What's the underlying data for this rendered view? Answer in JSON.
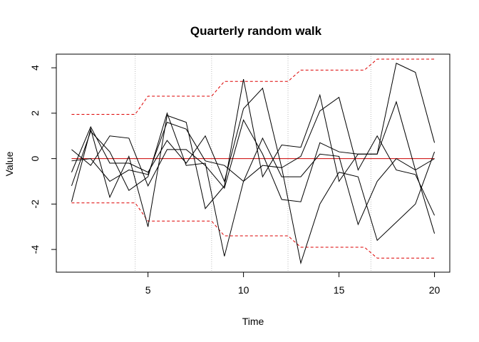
{
  "chart_data": {
    "type": "line",
    "title": "Quarterly random walk",
    "xlabel": "Time",
    "ylabel": "Value",
    "xlim": [
      0.2,
      20.8
    ],
    "ylim": [
      -5,
      4.6
    ],
    "x_ticks": [
      5,
      10,
      15,
      20
    ],
    "y_ticks": [
      -4,
      -2,
      0,
      2,
      4
    ],
    "x_tick_labels": [
      "5",
      "10",
      "15",
      "20"
    ],
    "y_tick_labels": [
      "-4",
      "-2",
      "0",
      "2",
      "4"
    ],
    "grid": false,
    "vlines": [
      4.33,
      8.33,
      12.33,
      16.67
    ],
    "x": [
      1,
      2,
      3,
      4,
      5,
      6,
      7,
      8,
      9,
      10,
      11,
      12,
      13,
      14,
      15,
      16,
      17,
      18,
      19,
      20
    ],
    "series": [
      {
        "values": [
          -1.9,
          1.3,
          -1.7,
          0.1,
          -3.0,
          1.9,
          1.6,
          -2.2,
          -1.2,
          3.5,
          -0.8,
          0.6,
          0.5,
          2.8,
          -1.0,
          0.2,
          0.2,
          4.2,
          3.8,
          0.7
        ]
      },
      {
        "values": [
          -1.2,
          1.2,
          0.3,
          -1.4,
          -0.8,
          2.0,
          -0.3,
          -0.2,
          -4.3,
          -1.0,
          0.9,
          -0.8,
          -0.8,
          0.2,
          0.1,
          -2.9,
          -1.0,
          0.0,
          -0.5,
          0.0
        ]
      },
      {
        "values": [
          0.4,
          -0.3,
          1.0,
          0.9,
          -1.2,
          0.4,
          0.4,
          -0.3,
          -1.3,
          1.7,
          0.2,
          -1.8,
          -1.9,
          0.7,
          0.3,
          0.2,
          0.2,
          2.5,
          -0.5,
          -3.3
        ]
      },
      {
        "values": [
          -0.6,
          1.4,
          -0.2,
          -0.2,
          -0.6,
          0.8,
          -0.2,
          1.0,
          -1.0,
          2.2,
          3.1,
          -0.4,
          0.1,
          2.1,
          2.7,
          -0.5,
          1.0,
          -0.5,
          -0.7,
          -2.5
        ]
      },
      {
        "values": [
          -0.1,
          0.0,
          -1.0,
          -0.5,
          -0.7,
          1.6,
          1.3,
          -0.1,
          -0.3,
          -1.0,
          -0.3,
          -0.4,
          -4.6,
          -2.0,
          -0.6,
          -0.8,
          -3.6,
          -2.8,
          -2.0,
          0.3
        ]
      }
    ],
    "zero_line": 0,
    "upper_band": [
      [
        1,
        1.95
      ],
      [
        4.33,
        1.95
      ],
      [
        5,
        2.75
      ],
      [
        8.33,
        2.75
      ],
      [
        9,
        3.4
      ],
      [
        12.33,
        3.4
      ],
      [
        13,
        3.9
      ],
      [
        16.33,
        3.9
      ],
      [
        17,
        4.38
      ],
      [
        20,
        4.38
      ]
    ],
    "lower_band": [
      [
        1,
        -1.95
      ],
      [
        4.33,
        -1.95
      ],
      [
        5,
        -2.75
      ],
      [
        8.33,
        -2.75
      ],
      [
        9,
        -3.4
      ],
      [
        12.33,
        -3.4
      ],
      [
        13,
        -3.9
      ],
      [
        16.33,
        -3.9
      ],
      [
        17,
        -4.38
      ],
      [
        20,
        -4.38
      ]
    ],
    "colors": {
      "series": "#000000",
      "zero": "#cc0000",
      "band": "#dd0000",
      "vline": "#bbbbbb"
    }
  }
}
